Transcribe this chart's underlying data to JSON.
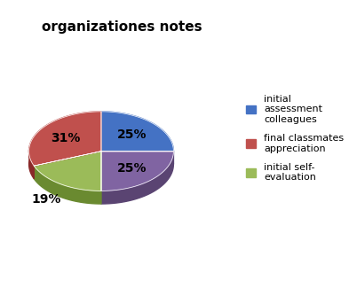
{
  "title": "organizationes notes",
  "slices": [
    25,
    25,
    19,
    31
  ],
  "pct_labels": [
    "25%",
    "25%",
    "19%",
    "31%"
  ],
  "colors": [
    "#4472C4",
    "#8064A2",
    "#9BBB59",
    "#C0504D"
  ],
  "shadow_colors": [
    "#2a4a8a",
    "#5a4472",
    "#6a8a30",
    "#8a2a2a"
  ],
  "legend_labels": [
    "initial\nassessment\ncolleagues",
    "final classmates\nappreciation",
    "initial self-\nevaluation"
  ],
  "legend_colors": [
    "#4472C4",
    "#C0504D",
    "#9BBB59"
  ],
  "startangle": 90,
  "background_color": "#FFFFFF",
  "title_fontsize": 11,
  "label_fontsize": 10,
  "legend_fontsize": 8
}
